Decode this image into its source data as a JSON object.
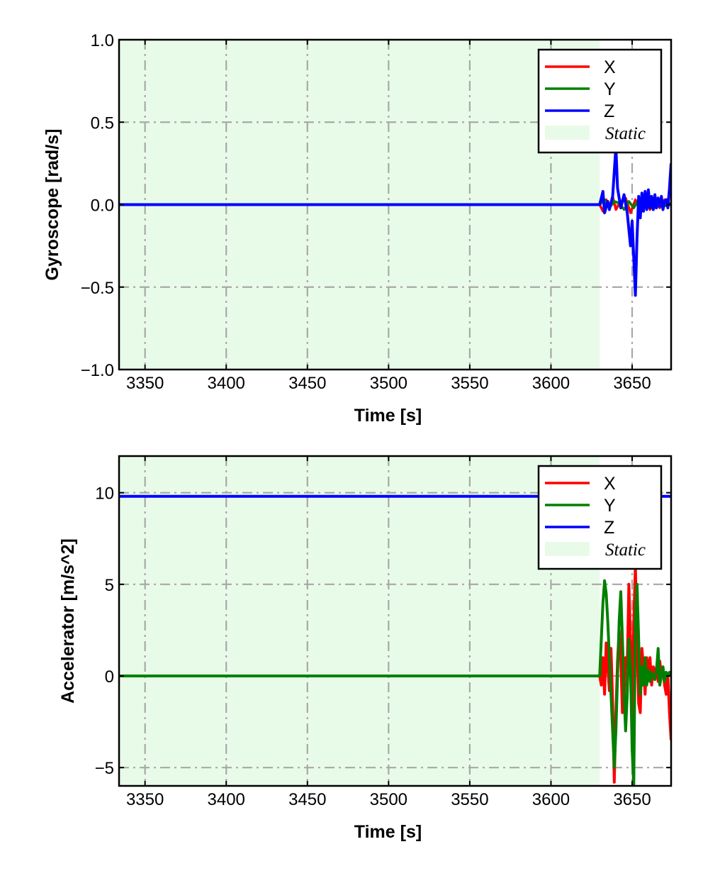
{
  "colors": {
    "x": "#ff0000",
    "y": "#008000",
    "z": "#0000ff",
    "static": "#e8fbe8",
    "grid": "#a8a8a8"
  },
  "chart_data": [
    {
      "type": "line",
      "xlabel": "Time [s]",
      "ylabel": "Gyroscope [rad/s]",
      "xlim": [
        3334,
        3674
      ],
      "ylim": [
        -1.0,
        1.0
      ],
      "xticks": [
        3350,
        3400,
        3450,
        3500,
        3550,
        3600,
        3650
      ],
      "yticks": [
        1.0,
        0.5,
        0.0,
        -0.5,
        -1.0
      ],
      "ytick_labels": [
        "1.0",
        "0.5",
        "0.0",
        "−0.5",
        "−1.0"
      ],
      "grid": true,
      "legend_position": "top-right",
      "static_region": {
        "label": "Static",
        "start": 3334,
        "end": 3630
      },
      "series": [
        {
          "name": "X",
          "color": "#ff0000",
          "x": [
            3334,
            3630,
            3632,
            3634,
            3636,
            3638,
            3640,
            3643,
            3646,
            3649,
            3652,
            3655,
            3658,
            3661,
            3664,
            3667,
            3670,
            3674
          ],
          "y": [
            0,
            0,
            -0.04,
            0.03,
            -0.02,
            0.05,
            -0.03,
            0.02,
            0.04,
            -0.05,
            0.03,
            -0.04,
            0.05,
            -0.03,
            0.04,
            -0.02,
            0.03,
            0.0
          ]
        },
        {
          "name": "Y",
          "color": "#008000",
          "x": [
            3334,
            3630,
            3633,
            3636,
            3639,
            3642,
            3645,
            3648,
            3651,
            3654,
            3657,
            3660,
            3663,
            3666,
            3669,
            3674
          ],
          "y": [
            0,
            0,
            0.03,
            -0.02,
            0.02,
            0.01,
            -0.03,
            0.02,
            -0.02,
            0.03,
            -0.02,
            0.03,
            -0.03,
            0.02,
            -0.01,
            0.0
          ]
        },
        {
          "name": "Z",
          "color": "#0000ff",
          "x": [
            3334,
            3630,
            3632,
            3633,
            3635,
            3636,
            3638,
            3639,
            3640,
            3641,
            3643,
            3645,
            3647,
            3649,
            3650,
            3652,
            3653,
            3654,
            3655,
            3656,
            3657,
            3658,
            3659,
            3660,
            3661,
            3662,
            3663,
            3664,
            3665,
            3666,
            3667,
            3668,
            3669,
            3670,
            3671,
            3672,
            3673,
            3674
          ],
          "y": [
            0,
            0,
            0.08,
            -0.05,
            0.02,
            -0.03,
            0.05,
            0.2,
            0.35,
            0.1,
            -0.02,
            0.06,
            -0.05,
            -0.25,
            -0.1,
            -0.55,
            -0.2,
            0.05,
            -0.08,
            0.07,
            -0.04,
            0.08,
            -0.03,
            0.09,
            -0.02,
            0.05,
            -0.03,
            0.06,
            -0.02,
            0.04,
            -0.01,
            0.05,
            -0.03,
            0.02,
            0.03,
            -0.02,
            0.1,
            0.25
          ]
        }
      ]
    },
    {
      "type": "line",
      "xlabel": "Time [s]",
      "ylabel": "Accelerator [m/s^2]",
      "xlim": [
        3334,
        3674
      ],
      "ylim": [
        -6.0,
        12.0
      ],
      "xticks": [
        3350,
        3400,
        3450,
        3500,
        3550,
        3600,
        3650
      ],
      "yticks": [
        10,
        5,
        0,
        -5
      ],
      "ytick_labels": [
        "10",
        "5",
        "0",
        "−5"
      ],
      "grid": true,
      "legend_position": "top-right",
      "static_region": {
        "label": "Static",
        "start": 3334,
        "end": 3630
      },
      "series": [
        {
          "name": "X",
          "color": "#ff0000",
          "x": [
            3334,
            3630,
            3631,
            3632,
            3633,
            3634,
            3635,
            3636,
            3637,
            3638,
            3639,
            3640,
            3641,
            3642,
            3643,
            3644,
            3645,
            3646,
            3647,
            3648,
            3649,
            3650,
            3651,
            3652,
            3653,
            3654,
            3655,
            3656,
            3657,
            3658,
            3659,
            3660,
            3661,
            3662,
            3663,
            3664,
            3665,
            3666,
            3667,
            3668,
            3669,
            3670,
            3671,
            3672,
            3673,
            3674
          ],
          "y": [
            0,
            0,
            -0.5,
            1.0,
            -1.0,
            1.8,
            0.5,
            -0.8,
            1.5,
            -1.5,
            -5.8,
            -2.0,
            0.8,
            2.5,
            1.0,
            -2.0,
            -1.5,
            1.0,
            0.5,
            5.0,
            2.0,
            -2.5,
            3.0,
            6.0,
            2.0,
            -1.5,
            -2.0,
            1.5,
            0.5,
            -1.0,
            1.0,
            0.0,
            1.0,
            -0.5,
            0.5,
            0.0,
            0.5,
            -0.3,
            0.8,
            0.0,
            0.3,
            -0.5,
            -1.0,
            0.0,
            -2.0,
            -3.5
          ]
        },
        {
          "name": "Y",
          "color": "#008000",
          "x": [
            3334,
            3630,
            3631,
            3632,
            3633,
            3634,
            3635,
            3636,
            3637,
            3638,
            3639,
            3640,
            3641,
            3642,
            3643,
            3644,
            3645,
            3646,
            3647,
            3648,
            3649,
            3650,
            3651,
            3652,
            3653,
            3654,
            3655,
            3656,
            3657,
            3658,
            3659,
            3660,
            3661,
            3662,
            3663,
            3664,
            3665,
            3666,
            3667,
            3668,
            3669,
            3670,
            3671,
            3672,
            3673,
            3674
          ],
          "y": [
            0,
            0,
            2.0,
            4.0,
            5.2,
            4.5,
            3.0,
            1.0,
            -1.0,
            -3.0,
            -5.0,
            -3.0,
            0.0,
            3.0,
            4.6,
            2.0,
            -1.0,
            -3.0,
            -1.0,
            2.0,
            0.5,
            -4.0,
            -6.0,
            3.0,
            5.0,
            2.0,
            -1.0,
            0.5,
            -0.5,
            1.0,
            -0.5,
            0.3,
            -0.3,
            0.2,
            0.0,
            -0.2,
            0.3,
            1.5,
            -0.5,
            0.0,
            0.5,
            -0.3,
            0.2,
            0.0,
            0.2,
            0.0
          ]
        },
        {
          "name": "Z",
          "color": "#0000ff",
          "x": [
            3334,
            3630,
            3640,
            3650,
            3660,
            3670,
            3674
          ],
          "y": [
            9.8,
            9.8,
            9.8,
            9.8,
            9.8,
            9.8,
            9.8
          ]
        }
      ]
    }
  ]
}
